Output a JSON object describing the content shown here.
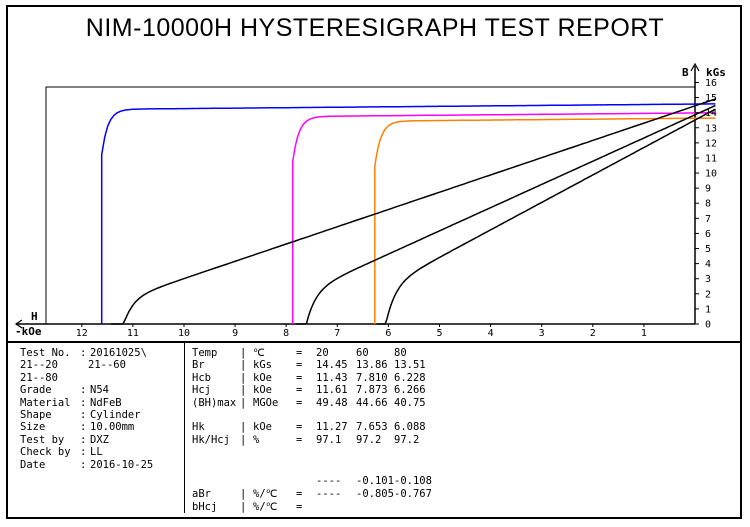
{
  "report": {
    "title": "NIM-10000H HYSTERESIGRAPH TEST REPORT"
  },
  "info": [
    {
      "label": "Test No.",
      "value": "20161025\\"
    },
    {
      "label": "21--20",
      "value": "21--60"
    },
    {
      "label": "21--80",
      "value": ""
    },
    {
      "label": "Grade",
      "value": "N54"
    },
    {
      "label": "Material",
      "value": "NdFeB"
    },
    {
      "label": "Shape",
      "value": "Cylinder"
    },
    {
      "label": "Size",
      "value": "10.00mm"
    },
    {
      "label": "Test by",
      "value": "DXZ"
    },
    {
      "label": "Check by",
      "value": "LL"
    },
    {
      "label": "Date",
      "value": "2016-10-25"
    }
  ],
  "results": [
    {
      "name": "Temp",
      "unit": "℃",
      "v1": "20",
      "v2": "60",
      "v3": "80"
    },
    {
      "name": "Br",
      "unit": "kGs",
      "v1": "14.45",
      "v2": "13.86",
      "v3": "13.51"
    },
    {
      "name": "Hcb",
      "unit": "kOe",
      "v1": "11.43",
      "v2": "7.810",
      "v3": "6.228"
    },
    {
      "name": "Hcj",
      "unit": "kOe",
      "v1": "11.61",
      "v2": "7.873",
      "v3": "6.266"
    },
    {
      "name": "(BH)max",
      "unit": "MGOe",
      "v1": "49.48",
      "v2": "44.66",
      "v3": "40.75"
    },
    {
      "name": "",
      "unit": "",
      "v1": "",
      "v2": "",
      "v3": ""
    },
    {
      "name": "Hk",
      "unit": "kOe",
      "v1": "11.27",
      "v2": "7.653",
      "v3": "6.088"
    },
    {
      "name": "Hk/Hcj",
      "unit": "%",
      "v1": "97.1",
      "v2": "97.2",
      "v3": "97.2"
    }
  ],
  "coefficients": {
    "blank_row": {
      "v1": "----",
      "v2": "-0.101",
      "v3": "-0.108"
    },
    "aBr": {
      "name": "aBr",
      "unit": "%/℃",
      "v1": "----",
      "v2": "-0.805",
      "v3": "-0.767"
    },
    "bHcj": {
      "name": "bHcj",
      "unit": "%/℃",
      "v1": "",
      "v2": "",
      "v3": ""
    }
  },
  "chart_data": {
    "type": "line",
    "x_axis": {
      "symbol": "H",
      "unit": "-kOe",
      "range": [
        0,
        12.7
      ],
      "ticks": [
        12,
        11,
        10,
        9,
        8,
        7,
        6,
        5,
        4,
        3,
        2,
        1
      ],
      "reversed": true
    },
    "y_axis": {
      "symbol": "B",
      "unit": "kGs",
      "range": [
        0,
        15.7
      ],
      "ticks": [
        0,
        1,
        2,
        3,
        4,
        5,
        6,
        7,
        8,
        9,
        10,
        11,
        12,
        13,
        14,
        15,
        16
      ]
    },
    "series": [
      {
        "temp": "20",
        "color": "#0000ff",
        "kind": "J",
        "Br": 14.45,
        "Hcj": 11.61
      },
      {
        "temp": "60",
        "color": "#ff00ff",
        "kind": "J",
        "Br": 13.86,
        "Hcj": 7.873
      },
      {
        "temp": "80",
        "color": "#ff8000",
        "kind": "J",
        "Br": 13.51,
        "Hcj": 6.266
      },
      {
        "temp": "20",
        "color": "#000000",
        "kind": "B",
        "Br": 14.45,
        "Hcb": 11.43
      },
      {
        "temp": "60",
        "color": "#000000",
        "kind": "B",
        "Br": 13.86,
        "Hcb": 7.81
      },
      {
        "temp": "80",
        "color": "#000000",
        "kind": "B",
        "Br": 13.51,
        "Hcb": 6.228
      }
    ]
  }
}
